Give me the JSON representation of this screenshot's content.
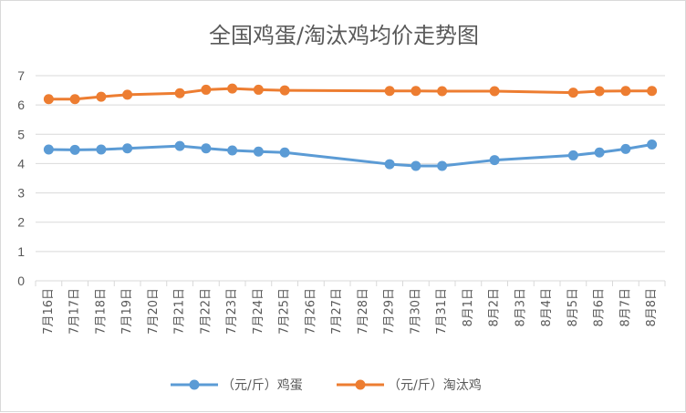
{
  "chart_data": {
    "type": "line",
    "title": "全国鸡蛋/淘汰鸡均价走势图",
    "categories": [
      "7月16日",
      "7月17日",
      "7月18日",
      "7月19日",
      "7月20日",
      "7月21日",
      "7月22日",
      "7月23日",
      "7月24日",
      "7月25日",
      "7月26日",
      "7月27日",
      "7月28日",
      "7月29日",
      "7月30日",
      "7月31日",
      "8月1日",
      "8月2日",
      "8月3日",
      "8月4日",
      "8月5日",
      "8月6日",
      "8月7日",
      "8月8日"
    ],
    "series": [
      {
        "name": "（元/斤）鸡蛋",
        "color": "#5b9bd5",
        "values": [
          4.48,
          4.47,
          4.48,
          4.52,
          null,
          4.6,
          4.52,
          4.45,
          4.41,
          4.38,
          null,
          null,
          null,
          3.98,
          3.92,
          3.92,
          null,
          4.12,
          null,
          null,
          4.28,
          4.38,
          4.5,
          4.65
        ]
      },
      {
        "name": "（元/斤）淘汰鸡",
        "color": "#ed7d31",
        "values": [
          6.2,
          6.2,
          6.28,
          6.35,
          null,
          6.4,
          6.52,
          6.56,
          6.52,
          6.5,
          null,
          null,
          null,
          6.48,
          6.48,
          6.47,
          null,
          6.47,
          null,
          null,
          6.42,
          6.47,
          6.48,
          6.48
        ]
      }
    ],
    "ylim": [
      0,
      7
    ],
    "yticks": [
      0,
      1,
      2,
      3,
      4,
      5,
      6,
      7
    ],
    "grid": true,
    "legend_position": "bottom"
  }
}
